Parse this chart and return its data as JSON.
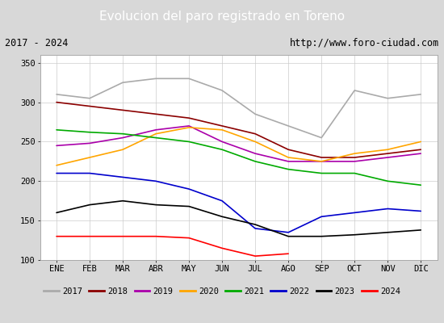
{
  "title": "Evolucion del paro registrado en Toreno",
  "subtitle_left": "2017 - 2024",
  "subtitle_right": "http://www.foro-ciudad.com",
  "x_labels": [
    "ENE",
    "FEB",
    "MAR",
    "ABR",
    "MAY",
    "JUN",
    "JUL",
    "AGO",
    "SEP",
    "OCT",
    "NOV",
    "DIC"
  ],
  "ylim": [
    100,
    360
  ],
  "yticks": [
    100,
    150,
    200,
    250,
    300,
    350
  ],
  "series": {
    "2017": {
      "color": "#aaaaaa",
      "values": [
        310,
        305,
        325,
        330,
        330,
        315,
        285,
        270,
        255,
        315,
        305,
        310
      ]
    },
    "2018": {
      "color": "#8b0000",
      "values": [
        300,
        295,
        290,
        285,
        280,
        270,
        260,
        240,
        230,
        230,
        235,
        240
      ]
    },
    "2019": {
      "color": "#aa00aa",
      "values": [
        245,
        248,
        255,
        265,
        270,
        250,
        235,
        225,
        225,
        225,
        230,
        235
      ]
    },
    "2020": {
      "color": "#ffa500",
      "values": [
        220,
        230,
        240,
        260,
        268,
        265,
        250,
        230,
        225,
        235,
        240,
        250
      ]
    },
    "2021": {
      "color": "#00aa00",
      "values": [
        265,
        262,
        260,
        255,
        250,
        240,
        225,
        215,
        210,
        210,
        200,
        195
      ]
    },
    "2022": {
      "color": "#0000cc",
      "values": [
        210,
        210,
        205,
        200,
        190,
        175,
        140,
        135,
        155,
        160,
        165,
        162
      ]
    },
    "2023": {
      "color": "#000000",
      "values": [
        160,
        170,
        175,
        170,
        168,
        155,
        145,
        130,
        130,
        132,
        135,
        138
      ]
    },
    "2024": {
      "color": "#ff0000",
      "values": [
        130,
        130,
        130,
        130,
        128,
        115,
        105,
        108,
        null,
        null,
        null,
        null
      ]
    }
  },
  "bg_color": "#d8d8d8",
  "plot_bg_color": "#ffffff",
  "title_bg_color": "#5b9bd5",
  "title_color": "#ffffff",
  "border_color": "#5b9bd5"
}
